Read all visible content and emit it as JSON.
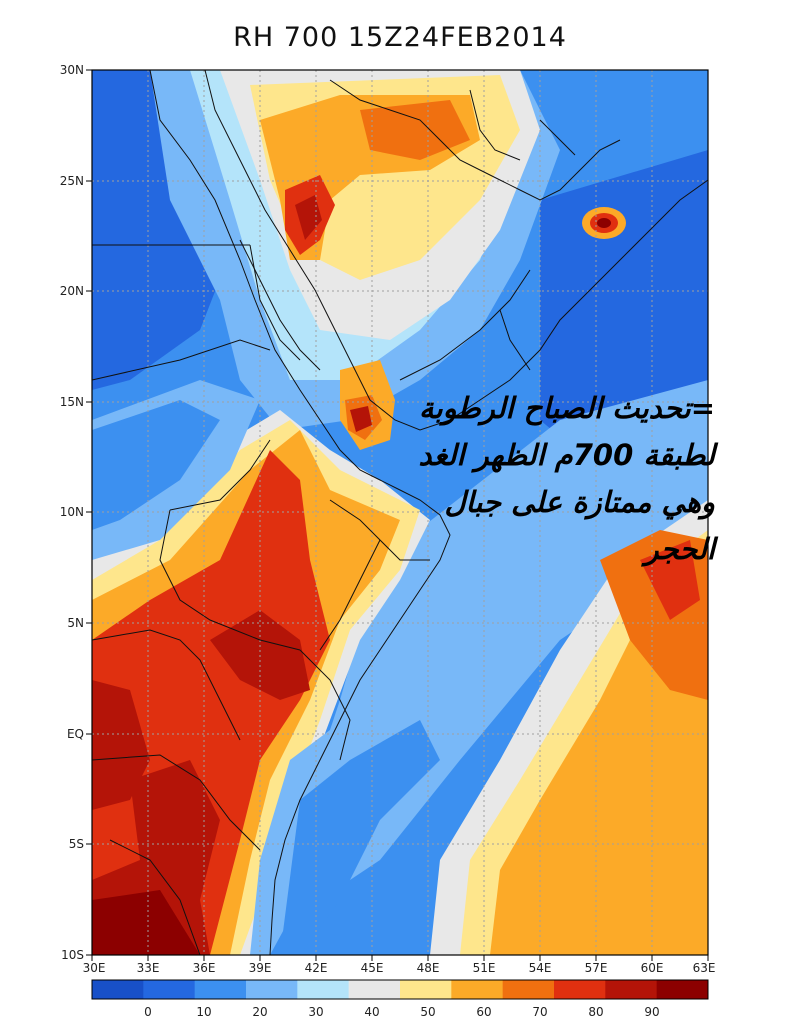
{
  "title": "RH 700 15Z24FEB2014",
  "lat_labels": [
    "30N",
    "25N",
    "20N",
    "15N",
    "10N",
    "5N",
    "EQ",
    "5S",
    "10S"
  ],
  "lon_labels": [
    "30E",
    "33E",
    "36E",
    "39E",
    "42E",
    "45E",
    "48E",
    "51E",
    "54E",
    "57E",
    "60E",
    "63E"
  ],
  "colorbar": {
    "labels": [
      "0",
      "10",
      "20",
      "30",
      "40",
      "50",
      "60",
      "70",
      "80",
      "90"
    ],
    "colors": [
      "#1850c8",
      "#2468e0",
      "#3c90f0",
      "#78b8f8",
      "#b4e4fa",
      "#e8e8e8",
      "#fee68c",
      "#fcaa28",
      "#f07010",
      "#e03010",
      "#b41408",
      "#8c0000"
    ]
  },
  "overlay_text": [
    "=تحديث الصباح الرطوبة",
    "لطبقة 700م الظهر الغد",
    "وهي ممتازة على جبال",
    "الحجر"
  ]
}
